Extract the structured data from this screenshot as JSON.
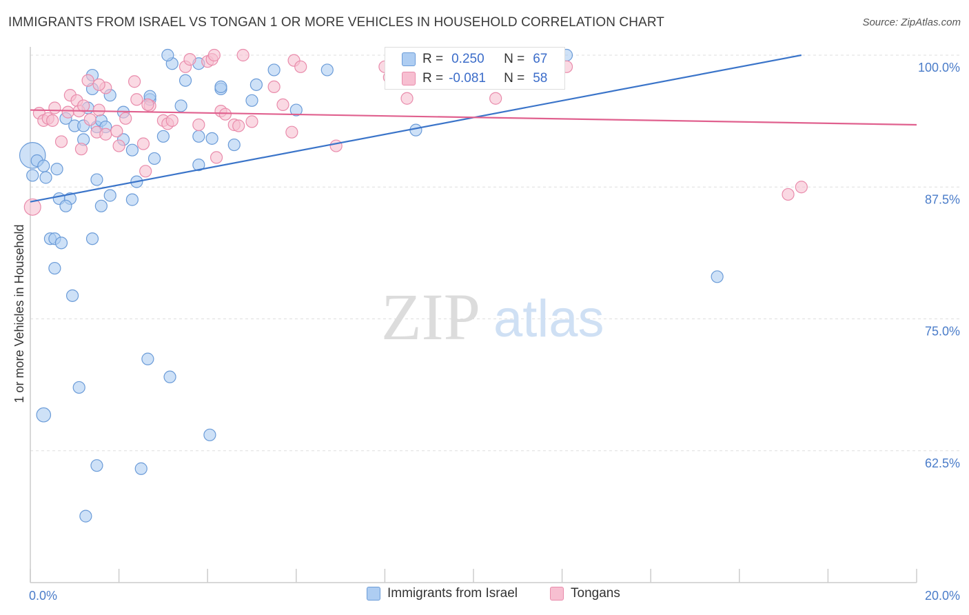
{
  "title": "IMMIGRANTS FROM ISRAEL VS TONGAN 1 OR MORE VEHICLES IN HOUSEHOLD CORRELATION CHART",
  "source": "Source: ZipAtlas.com",
  "watermark": {
    "zip": "ZIP",
    "atlas": "atlas"
  },
  "stats": {
    "rows": [
      {
        "r_label": "R =",
        "r_value": "0.250",
        "n_label": "N =",
        "n_value": "67"
      },
      {
        "r_label": "R =",
        "r_value": "-0.081",
        "n_label": "N =",
        "n_value": "58"
      }
    ]
  },
  "legend": {
    "israel": "Immigrants from Israel",
    "tongans": "Tongans"
  },
  "colors": {
    "israel_fill": "#aecdf2",
    "israel_stroke": "#6a9bd8",
    "israel_line": "#3a74c9",
    "tongan_fill": "#f7bfd1",
    "tongan_stroke": "#e98bab",
    "tongan_line": "#e0608e",
    "tick_text": "#4a7cc9",
    "grid": "#dddddd"
  },
  "chart_data": {
    "type": "scatter",
    "title": "IMMIGRANTS FROM ISRAEL VS TONGAN 1 OR MORE VEHICLES IN HOUSEHOLD CORRELATION CHART",
    "xlabel": "",
    "ylabel": "1 or more Vehicles in Household",
    "xlim": [
      0,
      20
    ],
    "ylim": [
      50,
      100
    ],
    "x_tick_labels": [
      {
        "value": 0,
        "label": "0.0%"
      },
      {
        "value": 20,
        "label": "20.0%"
      }
    ],
    "y_tick_labels": [
      {
        "value": 100,
        "label": "100.0%"
      },
      {
        "value": 87.5,
        "label": "87.5%"
      },
      {
        "value": 75,
        "label": "75.0%"
      },
      {
        "value": 62.5,
        "label": "62.5%"
      }
    ],
    "grid": true,
    "legend_position": "bottom",
    "series": [
      {
        "name": "Immigrants from Israel",
        "trend": {
          "x": [
            0,
            17.4
          ],
          "y": [
            86.1,
            100
          ]
        },
        "points": [
          [
            0.05,
            90.5,
            2.2
          ],
          [
            0.05,
            88.6,
            1
          ],
          [
            0.15,
            90.0,
            1
          ],
          [
            0.3,
            89.5,
            1
          ],
          [
            0.35,
            88.4,
            1
          ],
          [
            0.6,
            89.2,
            1
          ],
          [
            0.8,
            94.0,
            1
          ],
          [
            1.0,
            93.3,
            1
          ],
          [
            1.2,
            93.3,
            1
          ],
          [
            1.2,
            92.0,
            1
          ],
          [
            1.3,
            95.0,
            1
          ],
          [
            1.5,
            93.2,
            1
          ],
          [
            1.6,
            93.8,
            1
          ],
          [
            1.7,
            93.2,
            1
          ],
          [
            1.8,
            96.2,
            1
          ],
          [
            1.4,
            96.8,
            1
          ],
          [
            1.4,
            98.1,
            1
          ],
          [
            2.1,
            92.0,
            1
          ],
          [
            2.1,
            94.6,
            1
          ],
          [
            2.3,
            91.0,
            1
          ],
          [
            2.7,
            95.8,
            1
          ],
          [
            3.0,
            92.3,
            1
          ],
          [
            3.4,
            95.2,
            1
          ],
          [
            3.8,
            92.3,
            1
          ],
          [
            3.8,
            89.6,
            1
          ],
          [
            4.1,
            92.1,
            1
          ],
          [
            4.6,
            91.5,
            1
          ],
          [
            5.0,
            95.7,
            1
          ],
          [
            5.5,
            98.6,
            1
          ],
          [
            6.0,
            94.8,
            1
          ],
          [
            6.7,
            98.6,
            1
          ],
          [
            8.7,
            92.9,
            1
          ],
          [
            10.0,
            100,
            1
          ],
          [
            11.5,
            100,
            1
          ],
          [
            12.1,
            100,
            1
          ],
          [
            3.2,
            99.2,
            1
          ],
          [
            3.1,
            100,
            1
          ],
          [
            3.8,
            99.2,
            1
          ],
          [
            4.3,
            96.8,
            1
          ],
          [
            4.3,
            97.0,
            1
          ],
          [
            2.8,
            90.2,
            1
          ],
          [
            1.5,
            88.2,
            1
          ],
          [
            2.4,
            88.0,
            1
          ],
          [
            0.65,
            86.4,
            1
          ],
          [
            0.9,
            86.4,
            1
          ],
          [
            1.8,
            86.7,
            1
          ],
          [
            2.3,
            86.3,
            1
          ],
          [
            0.8,
            85.7,
            1
          ],
          [
            1.6,
            85.7,
            1
          ],
          [
            0.45,
            82.6,
            1
          ],
          [
            0.55,
            82.6,
            1
          ],
          [
            0.7,
            82.2,
            1
          ],
          [
            1.4,
            82.6,
            1
          ],
          [
            0.55,
            79.8,
            1
          ],
          [
            0.95,
            77.2,
            1
          ],
          [
            2.65,
            71.2,
            1
          ],
          [
            3.15,
            69.5,
            1
          ],
          [
            1.1,
            68.5,
            1
          ],
          [
            0.3,
            65.9,
            1.2
          ],
          [
            4.05,
            64.0,
            1
          ],
          [
            1.5,
            61.1,
            1
          ],
          [
            2.5,
            60.8,
            1
          ],
          [
            1.25,
            56.3,
            1
          ],
          [
            15.5,
            79.0,
            1
          ],
          [
            2.7,
            96.1,
            1
          ],
          [
            3.5,
            97.6,
            1
          ],
          [
            5.1,
            97.2,
            1
          ]
        ]
      },
      {
        "name": "Tongans",
        "trend": {
          "x": [
            0,
            20
          ],
          "y": [
            94.8,
            93.4
          ]
        },
        "points": [
          [
            0.05,
            85.6,
            1.4
          ],
          [
            0.2,
            94.5,
            1
          ],
          [
            0.3,
            93.8,
            1
          ],
          [
            0.4,
            94.0,
            1
          ],
          [
            0.5,
            93.8,
            1
          ],
          [
            0.55,
            95.0,
            1
          ],
          [
            0.7,
            91.8,
            1
          ],
          [
            0.85,
            94.6,
            1
          ],
          [
            0.9,
            96.2,
            1
          ],
          [
            1.05,
            95.7,
            1
          ],
          [
            1.1,
            94.7,
            1
          ],
          [
            1.15,
            91.1,
            1
          ],
          [
            1.2,
            95.2,
            1
          ],
          [
            1.35,
            93.9,
            1
          ],
          [
            1.5,
            92.7,
            1
          ],
          [
            1.55,
            94.8,
            1
          ],
          [
            1.7,
            96.9,
            1
          ],
          [
            1.7,
            92.5,
            1
          ],
          [
            1.95,
            92.8,
            1
          ],
          [
            2.0,
            91.4,
            1
          ],
          [
            2.15,
            94.0,
            1
          ],
          [
            2.35,
            97.5,
            1
          ],
          [
            2.4,
            95.8,
            1
          ],
          [
            2.55,
            91.6,
            1
          ],
          [
            2.6,
            89.0,
            1
          ],
          [
            2.7,
            95.2,
            1
          ],
          [
            3.0,
            93.8,
            1
          ],
          [
            3.1,
            93.5,
            1
          ],
          [
            3.2,
            93.8,
            1
          ],
          [
            3.5,
            98.9,
            1
          ],
          [
            3.8,
            93.4,
            1
          ],
          [
            4.0,
            99.4,
            1
          ],
          [
            4.1,
            99.6,
            1
          ],
          [
            4.15,
            100,
            1
          ],
          [
            4.2,
            90.3,
            1
          ],
          [
            4.3,
            94.7,
            1
          ],
          [
            4.4,
            94.4,
            1
          ],
          [
            4.6,
            93.4,
            1
          ],
          [
            4.7,
            93.3,
            1
          ],
          [
            4.8,
            100,
            1
          ],
          [
            5.0,
            93.7,
            1
          ],
          [
            5.5,
            97.0,
            1
          ],
          [
            5.7,
            95.3,
            1
          ],
          [
            5.9,
            92.7,
            1
          ],
          [
            5.95,
            99.5,
            1
          ],
          [
            6.1,
            98.9,
            1
          ],
          [
            6.9,
            91.4,
            1
          ],
          [
            8.0,
            98.9,
            1
          ],
          [
            8.1,
            97.9,
            1
          ],
          [
            8.5,
            95.9,
            1
          ],
          [
            10.5,
            95.9,
            1
          ],
          [
            12.1,
            98.9,
            1
          ],
          [
            17.1,
            86.8,
            1
          ],
          [
            17.4,
            87.5,
            1
          ],
          [
            1.3,
            97.6,
            1
          ],
          [
            2.65,
            95.3,
            1
          ],
          [
            1.55,
            97.2,
            1
          ],
          [
            3.6,
            99.6,
            1
          ]
        ]
      }
    ]
  },
  "axes": {
    "ylabel": "1 or more Vehicles in Household"
  }
}
